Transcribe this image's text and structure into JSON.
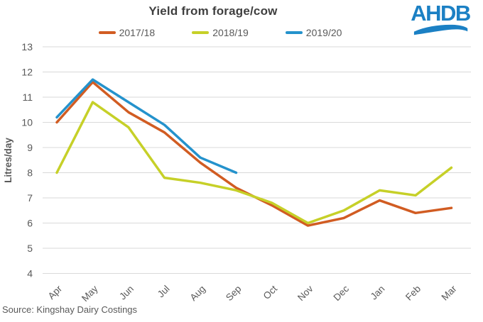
{
  "header": {
    "logo_text": "AHDB",
    "logo_color": "#1b80c4"
  },
  "source_note": "Source: Kingshay Dairy Costings",
  "chart_data": {
    "type": "line",
    "title": "Yield from forage/cow",
    "xlabel": "",
    "ylabel": "Litres/day",
    "categories": [
      "Apr",
      "May",
      "Jun",
      "Jul",
      "Aug",
      "Sep",
      "Oct",
      "Nov",
      "Dec",
      "Jan",
      "Feb",
      "Mar"
    ],
    "ylim": [
      4,
      13
    ],
    "ytick_step": 1,
    "grid": true,
    "legend_position": "top",
    "series": [
      {
        "name": "2017/18",
        "color": "#d15c22",
        "values": [
          10.0,
          11.6,
          10.4,
          9.6,
          8.4,
          7.4,
          6.7,
          5.9,
          6.2,
          6.9,
          6.4,
          6.6
        ]
      },
      {
        "name": "2018/19",
        "color": "#c6d028",
        "values": [
          8.0,
          10.8,
          9.8,
          7.8,
          7.6,
          7.3,
          6.8,
          6.0,
          6.5,
          7.3,
          7.1,
          8.2
        ]
      },
      {
        "name": "2019/20",
        "color": "#2492cc",
        "values": [
          10.2,
          11.7,
          10.8,
          9.9,
          8.6,
          8.0,
          null,
          null,
          null,
          null,
          null,
          null
        ]
      }
    ]
  }
}
